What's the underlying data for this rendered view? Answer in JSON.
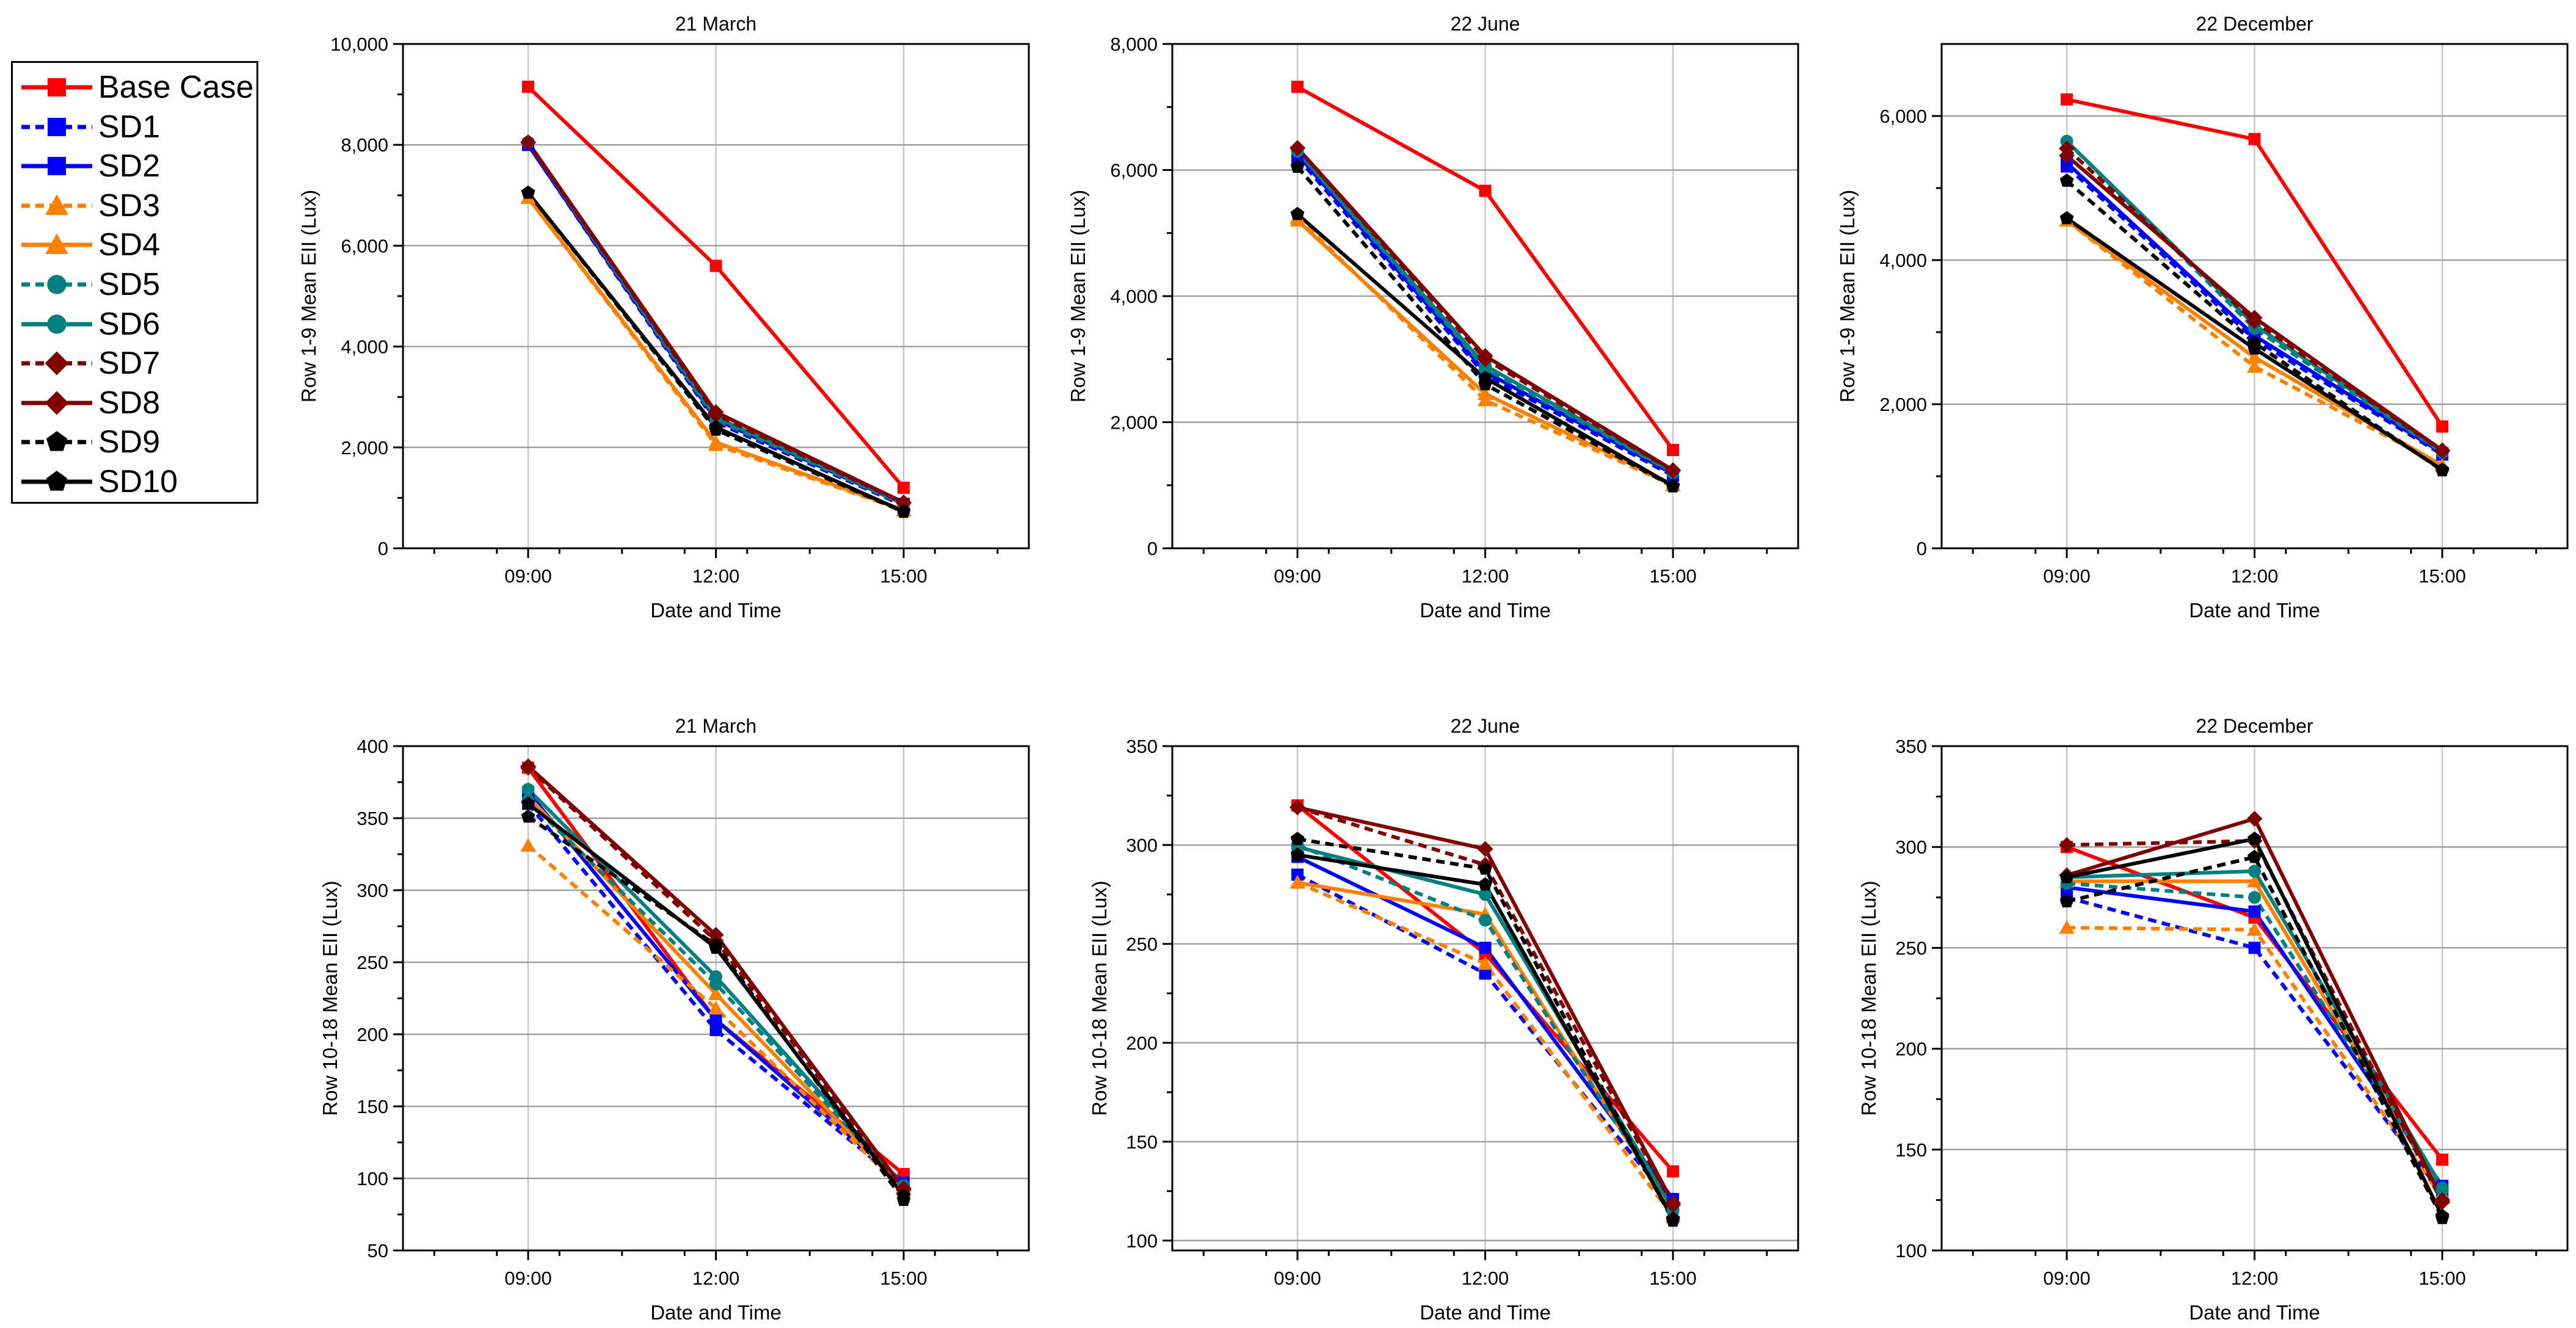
{
  "legend": {
    "entries": [
      {
        "name": "Base Case",
        "color": "#ff0000",
        "dashed": false,
        "marker": "square"
      },
      {
        "name": "SD1",
        "color": "#0000ff",
        "dashed": true,
        "marker": "square"
      },
      {
        "name": "SD2",
        "color": "#0000ff",
        "dashed": false,
        "marker": "square"
      },
      {
        "name": "SD3",
        "color": "#ff8000",
        "dashed": true,
        "marker": "triangle"
      },
      {
        "name": "SD4",
        "color": "#ff8000",
        "dashed": false,
        "marker": "triangle"
      },
      {
        "name": "SD5",
        "color": "#008080",
        "dashed": true,
        "marker": "circle"
      },
      {
        "name": "SD6",
        "color": "#008080",
        "dashed": false,
        "marker": "circle"
      },
      {
        "name": "SD7",
        "color": "#800000",
        "dashed": true,
        "marker": "diamond"
      },
      {
        "name": "SD8",
        "color": "#800000",
        "dashed": false,
        "marker": "diamond"
      },
      {
        "name": "SD9",
        "color": "#000000",
        "dashed": true,
        "marker": "pentagon"
      },
      {
        "name": "SD10",
        "color": "#000000",
        "dashed": false,
        "marker": "pentagon"
      }
    ]
  },
  "chart_data": [
    {
      "type": "line",
      "title": "21 March",
      "xlabel": "Date and Time",
      "ylabel": "Row 1-9 Mean EII (Lux)",
      "categories": [
        "09:00",
        "12:00",
        "15:00"
      ],
      "ylim": [
        0,
        10000
      ],
      "yticks": [
        0,
        2000,
        4000,
        6000,
        8000,
        10000
      ],
      "ytick_labels": [
        "0",
        "2,000",
        "4,000",
        "6,000",
        "8,000",
        "10,000"
      ],
      "series": [
        {
          "name": "Base Case",
          "values": [
            9150,
            5600,
            1200
          ]
        },
        {
          "name": "SD1",
          "values": [
            8000,
            2500,
            850
          ]
        },
        {
          "name": "SD2",
          "values": [
            8000,
            2550,
            880
          ]
        },
        {
          "name": "SD3",
          "values": [
            6950,
            2050,
            750
          ]
        },
        {
          "name": "SD4",
          "values": [
            6950,
            2100,
            760
          ]
        },
        {
          "name": "SD5",
          "values": [
            8050,
            2550,
            870
          ]
        },
        {
          "name": "SD6",
          "values": [
            8050,
            2600,
            890
          ]
        },
        {
          "name": "SD7",
          "values": [
            8050,
            2650,
            900
          ]
        },
        {
          "name": "SD8",
          "values": [
            8050,
            2700,
            910
          ]
        },
        {
          "name": "SD9",
          "values": [
            7050,
            2350,
            720
          ]
        },
        {
          "name": "SD10",
          "values": [
            7050,
            2400,
            730
          ]
        }
      ]
    },
    {
      "type": "line",
      "title": "22 June",
      "xlabel": "Date and Time",
      "ylabel": "Row 1-9 Mean EII (Lux)",
      "categories": [
        "09:00",
        "12:00",
        "15:00"
      ],
      "ylim": [
        0,
        8000
      ],
      "yticks": [
        0,
        2000,
        4000,
        6000,
        8000
      ],
      "ytick_labels": [
        "0",
        "2,000",
        "4,000",
        "6,000",
        "8,000"
      ],
      "series": [
        {
          "name": "Base Case",
          "values": [
            7320,
            5670,
            1560
          ]
        },
        {
          "name": "SD1",
          "values": [
            6200,
            2750,
            1150
          ]
        },
        {
          "name": "SD2",
          "values": [
            6250,
            2800,
            1180
          ]
        },
        {
          "name": "SD3",
          "values": [
            5250,
            2350,
            1000
          ]
        },
        {
          "name": "SD4",
          "values": [
            5200,
            2450,
            1010
          ]
        },
        {
          "name": "SD5",
          "values": [
            6300,
            2850,
            1200
          ]
        },
        {
          "name": "SD6",
          "values": [
            6300,
            2900,
            1210
          ]
        },
        {
          "name": "SD7",
          "values": [
            6350,
            3000,
            1230
          ]
        },
        {
          "name": "SD8",
          "values": [
            6350,
            3050,
            1240
          ]
        },
        {
          "name": "SD9",
          "values": [
            6050,
            2600,
            980
          ]
        },
        {
          "name": "SD10",
          "values": [
            5300,
            2700,
            990
          ]
        }
      ]
    },
    {
      "type": "line",
      "title": "22 December",
      "xlabel": "Date and Time",
      "ylabel": "Row 1-9 Mean EII (Lux)",
      "categories": [
        "09:00",
        "12:00",
        "15:00"
      ],
      "ylim": [
        0,
        7000
      ],
      "yticks": [
        0,
        2000,
        4000,
        6000
      ],
      "ytick_labels": [
        "0",
        "2,000",
        "4,000",
        "6,000"
      ],
      "series": [
        {
          "name": "Base Case",
          "values": [
            6230,
            5680,
            1690
          ]
        },
        {
          "name": "SD1",
          "values": [
            5300,
            2900,
            1300
          ]
        },
        {
          "name": "SD2",
          "values": [
            5350,
            2950,
            1320
          ]
        },
        {
          "name": "SD3",
          "values": [
            4550,
            2520,
            1150
          ]
        },
        {
          "name": "SD4",
          "values": [
            4550,
            2650,
            1150
          ]
        },
        {
          "name": "SD5",
          "values": [
            5650,
            3050,
            1330
          ]
        },
        {
          "name": "SD6",
          "values": [
            5650,
            3100,
            1340
          ]
        },
        {
          "name": "SD7",
          "values": [
            5550,
            3150,
            1350
          ]
        },
        {
          "name": "SD8",
          "values": [
            5450,
            3200,
            1360
          ]
        },
        {
          "name": "SD9",
          "values": [
            5100,
            2850,
            1080
          ]
        },
        {
          "name": "SD10",
          "values": [
            4580,
            2770,
            1090
          ]
        }
      ]
    },
    {
      "type": "line",
      "title": "21 March",
      "xlabel": "Date and Time",
      "ylabel": "Row 10-18 Mean EII (Lux)",
      "categories": [
        "09:00",
        "12:00",
        "15:00"
      ],
      "ylim": [
        50,
        400
      ],
      "yticks": [
        50,
        100,
        150,
        200,
        250,
        300,
        350,
        400
      ],
      "ytick_labels": [
        "50",
        "100",
        "150",
        "200",
        "250",
        "300",
        "350",
        "400"
      ],
      "series": [
        {
          "name": "Base Case",
          "values": [
            385,
            210,
            103
          ]
        },
        {
          "name": "SD1",
          "values": [
            360,
            203,
            96
          ]
        },
        {
          "name": "SD2",
          "values": [
            368,
            210,
            97
          ]
        },
        {
          "name": "SD3",
          "values": [
            331,
            218,
            92
          ]
        },
        {
          "name": "SD4",
          "values": [
            365,
            228,
            93
          ]
        },
        {
          "name": "SD5",
          "values": [
            362,
            235,
            94
          ]
        },
        {
          "name": "SD6",
          "values": [
            370,
            240,
            95
          ]
        },
        {
          "name": "SD7",
          "values": [
            385,
            265,
            92
          ]
        },
        {
          "name": "SD8",
          "values": [
            386,
            269,
            93
          ]
        },
        {
          "name": "SD9",
          "values": [
            351,
            262,
            85
          ]
        },
        {
          "name": "SD10",
          "values": [
            360,
            260,
            88
          ]
        }
      ]
    },
    {
      "type": "line",
      "title": "22 June",
      "xlabel": "Date and Time",
      "ylabel": "Row 10-18 Mean EII (Lux)",
      "categories": [
        "09:00",
        "12:00",
        "15:00"
      ],
      "ylim": [
        95,
        350
      ],
      "yticks": [
        100,
        150,
        200,
        250,
        300,
        350
      ],
      "ytick_labels": [
        "100",
        "150",
        "200",
        "250",
        "300",
        "350"
      ],
      "series": [
        {
          "name": "Base Case",
          "values": [
            320,
            245,
            135
          ]
        },
        {
          "name": "SD1",
          "values": [
            285,
            235,
            118
          ]
        },
        {
          "name": "SD2",
          "values": [
            294,
            248,
            121
          ]
        },
        {
          "name": "SD3",
          "values": [
            281,
            240,
            112
          ]
        },
        {
          "name": "SD4",
          "values": [
            281,
            265,
            114
          ]
        },
        {
          "name": "SD5",
          "values": [
            300,
            262,
            115
          ]
        },
        {
          "name": "SD6",
          "values": [
            299,
            275,
            116
          ]
        },
        {
          "name": "SD7",
          "values": [
            319,
            290,
            118
          ]
        },
        {
          "name": "SD8",
          "values": [
            319,
            298,
            119
          ]
        },
        {
          "name": "SD9",
          "values": [
            303,
            288,
            110
          ]
        },
        {
          "name": "SD10",
          "values": [
            295,
            280,
            111
          ]
        }
      ]
    },
    {
      "type": "line",
      "title": "22 December",
      "xlabel": "Date and Time",
      "ylabel": "Row 10-18 Mean EII (Lux)",
      "categories": [
        "09:00",
        "12:00",
        "15:00"
      ],
      "ylim": [
        100,
        350
      ],
      "yticks": [
        100,
        150,
        200,
        250,
        300,
        350
      ],
      "ytick_labels": [
        "100",
        "150",
        "200",
        "250",
        "300",
        "350"
      ],
      "series": [
        {
          "name": "Base Case",
          "values": [
            300,
            265,
            145
          ]
        },
        {
          "name": "SD1",
          "values": [
            275,
            250,
            128
          ]
        },
        {
          "name": "SD2",
          "values": [
            280,
            268,
            132
          ]
        },
        {
          "name": "SD3",
          "values": [
            260,
            259,
            126
          ]
        },
        {
          "name": "SD4",
          "values": [
            283,
            283,
            128
          ]
        },
        {
          "name": "SD5",
          "values": [
            282,
            275,
            130
          ]
        },
        {
          "name": "SD6",
          "values": [
            285,
            288,
            131
          ]
        },
        {
          "name": "SD7",
          "values": [
            301,
            303,
            124
          ]
        },
        {
          "name": "SD8",
          "values": [
            286,
            314,
            125
          ]
        },
        {
          "name": "SD9",
          "values": [
            273,
            295,
            116
          ]
        },
        {
          "name": "SD10",
          "values": [
            285,
            304,
            117
          ]
        }
      ]
    }
  ]
}
